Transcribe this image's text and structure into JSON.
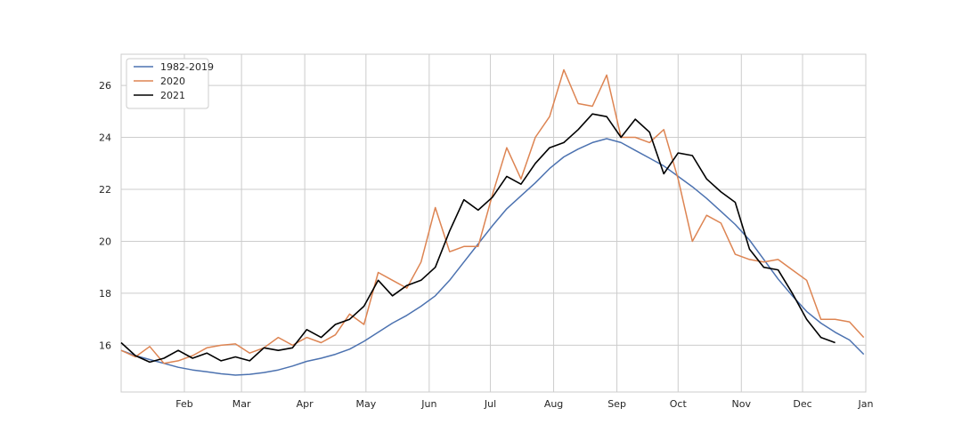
{
  "chart_data": {
    "type": "line",
    "x_axis": {
      "scale": "time",
      "domain": [
        "2021-01-01",
        "2022-01-01"
      ],
      "tick_dates": [
        "2021-02-01",
        "2021-03-01",
        "2021-04-01",
        "2021-05-01",
        "2021-06-01",
        "2021-07-01",
        "2021-08-01",
        "2021-09-01",
        "2021-10-01",
        "2021-11-01",
        "2021-12-01",
        "2022-01-01"
      ],
      "tick_labels": [
        "Feb",
        "Mar",
        "Apr",
        "May",
        "Jun",
        "Jul",
        "Aug",
        "Sep",
        "Oct",
        "Nov",
        "Dec",
        "Jan"
      ]
    },
    "y_axis": {
      "ylim": [
        14.2,
        27.2
      ],
      "ticks": [
        16,
        18,
        20,
        22,
        24,
        26
      ],
      "tick_labels": [
        "16",
        "18",
        "20",
        "22",
        "24",
        "26"
      ]
    },
    "grid": true,
    "legend_position": "top-left",
    "series": [
      {
        "name": "1982-2019",
        "color": "#4c72b0",
        "points": [
          [
            "2021-01-01",
            15.8
          ],
          [
            "2021-01-08",
            15.6
          ],
          [
            "2021-01-15",
            15.45
          ],
          [
            "2021-01-22",
            15.3
          ],
          [
            "2021-01-29",
            15.15
          ],
          [
            "2021-02-05",
            15.05
          ],
          [
            "2021-02-12",
            14.98
          ],
          [
            "2021-02-19",
            14.9
          ],
          [
            "2021-02-26",
            14.85
          ],
          [
            "2021-03-05",
            14.88
          ],
          [
            "2021-03-12",
            14.95
          ],
          [
            "2021-03-19",
            15.05
          ],
          [
            "2021-03-26",
            15.2
          ],
          [
            "2021-04-02",
            15.38
          ],
          [
            "2021-04-09",
            15.5
          ],
          [
            "2021-04-16",
            15.65
          ],
          [
            "2021-04-23",
            15.85
          ],
          [
            "2021-04-30",
            16.15
          ],
          [
            "2021-05-07",
            16.5
          ],
          [
            "2021-05-14",
            16.85
          ],
          [
            "2021-05-21",
            17.15
          ],
          [
            "2021-05-28",
            17.5
          ],
          [
            "2021-06-04",
            17.9
          ],
          [
            "2021-06-11",
            18.5
          ],
          [
            "2021-06-18",
            19.2
          ],
          [
            "2021-06-25",
            19.9
          ],
          [
            "2021-07-02",
            20.6
          ],
          [
            "2021-07-09",
            21.25
          ],
          [
            "2021-07-16",
            21.75
          ],
          [
            "2021-07-23",
            22.25
          ],
          [
            "2021-07-30",
            22.8
          ],
          [
            "2021-08-06",
            23.25
          ],
          [
            "2021-08-13",
            23.55
          ],
          [
            "2021-08-20",
            23.8
          ],
          [
            "2021-08-27",
            23.95
          ],
          [
            "2021-09-03",
            23.8
          ],
          [
            "2021-09-10",
            23.5
          ],
          [
            "2021-09-17",
            23.2
          ],
          [
            "2021-09-24",
            22.9
          ],
          [
            "2021-10-01",
            22.5
          ],
          [
            "2021-10-08",
            22.1
          ],
          [
            "2021-10-15",
            21.65
          ],
          [
            "2021-10-22",
            21.15
          ],
          [
            "2021-10-29",
            20.65
          ],
          [
            "2021-11-05",
            20.05
          ],
          [
            "2021-11-12",
            19.3
          ],
          [
            "2021-11-19",
            18.55
          ],
          [
            "2021-11-26",
            17.9
          ],
          [
            "2021-12-03",
            17.3
          ],
          [
            "2021-12-10",
            16.85
          ],
          [
            "2021-12-17",
            16.5
          ],
          [
            "2021-12-24",
            16.2
          ],
          [
            "2021-12-31",
            15.65
          ]
        ]
      },
      {
        "name": "2020",
        "color": "#dd8452",
        "points": [
          [
            "2021-01-01",
            15.8
          ],
          [
            "2021-01-08",
            15.55
          ],
          [
            "2021-01-15",
            15.95
          ],
          [
            "2021-01-22",
            15.3
          ],
          [
            "2021-01-29",
            15.4
          ],
          [
            "2021-02-05",
            15.6
          ],
          [
            "2021-02-12",
            15.9
          ],
          [
            "2021-02-19",
            16.0
          ],
          [
            "2021-02-26",
            16.05
          ],
          [
            "2021-03-05",
            15.7
          ],
          [
            "2021-03-12",
            15.9
          ],
          [
            "2021-03-19",
            16.3
          ],
          [
            "2021-03-26",
            16.0
          ],
          [
            "2021-04-02",
            16.3
          ],
          [
            "2021-04-09",
            16.1
          ],
          [
            "2021-04-16",
            16.4
          ],
          [
            "2021-04-23",
            17.2
          ],
          [
            "2021-04-30",
            16.8
          ],
          [
            "2021-05-07",
            18.8
          ],
          [
            "2021-05-14",
            18.5
          ],
          [
            "2021-05-21",
            18.2
          ],
          [
            "2021-05-28",
            19.2
          ],
          [
            "2021-06-04",
            21.3
          ],
          [
            "2021-06-11",
            19.6
          ],
          [
            "2021-06-18",
            19.8
          ],
          [
            "2021-06-25",
            19.8
          ],
          [
            "2021-07-02",
            21.8
          ],
          [
            "2021-07-09",
            23.6
          ],
          [
            "2021-07-16",
            22.4
          ],
          [
            "2021-07-23",
            24.0
          ],
          [
            "2021-07-30",
            24.8
          ],
          [
            "2021-08-06",
            26.6
          ],
          [
            "2021-08-13",
            25.3
          ],
          [
            "2021-08-20",
            25.2
          ],
          [
            "2021-08-27",
            26.4
          ],
          [
            "2021-09-03",
            24.0
          ],
          [
            "2021-09-10",
            24.0
          ],
          [
            "2021-09-17",
            23.8
          ],
          [
            "2021-09-24",
            24.3
          ],
          [
            "2021-10-01",
            22.4
          ],
          [
            "2021-10-08",
            20.0
          ],
          [
            "2021-10-15",
            21.0
          ],
          [
            "2021-10-22",
            20.7
          ],
          [
            "2021-10-29",
            19.5
          ],
          [
            "2021-11-05",
            19.3
          ],
          [
            "2021-11-12",
            19.2
          ],
          [
            "2021-11-19",
            19.3
          ],
          [
            "2021-11-26",
            18.9
          ],
          [
            "2021-12-03",
            18.5
          ],
          [
            "2021-12-10",
            17.0
          ],
          [
            "2021-12-17",
            17.0
          ],
          [
            "2021-12-24",
            16.9
          ],
          [
            "2021-12-31",
            16.3
          ]
        ]
      },
      {
        "name": "2021",
        "color": "#000000",
        "points": [
          [
            "2021-01-01",
            16.1
          ],
          [
            "2021-01-08",
            15.6
          ],
          [
            "2021-01-15",
            15.35
          ],
          [
            "2021-01-22",
            15.5
          ],
          [
            "2021-01-29",
            15.8
          ],
          [
            "2021-02-05",
            15.5
          ],
          [
            "2021-02-12",
            15.7
          ],
          [
            "2021-02-19",
            15.4
          ],
          [
            "2021-02-26",
            15.55
          ],
          [
            "2021-03-05",
            15.4
          ],
          [
            "2021-03-12",
            15.9
          ],
          [
            "2021-03-19",
            15.8
          ],
          [
            "2021-03-26",
            15.9
          ],
          [
            "2021-04-02",
            16.6
          ],
          [
            "2021-04-09",
            16.3
          ],
          [
            "2021-04-16",
            16.8
          ],
          [
            "2021-04-23",
            17.0
          ],
          [
            "2021-04-30",
            17.5
          ],
          [
            "2021-05-07",
            18.5
          ],
          [
            "2021-05-14",
            17.9
          ],
          [
            "2021-05-21",
            18.3
          ],
          [
            "2021-05-28",
            18.5
          ],
          [
            "2021-06-04",
            19.0
          ],
          [
            "2021-06-11",
            20.4
          ],
          [
            "2021-06-18",
            21.6
          ],
          [
            "2021-06-25",
            21.2
          ],
          [
            "2021-07-02",
            21.7
          ],
          [
            "2021-07-09",
            22.5
          ],
          [
            "2021-07-16",
            22.2
          ],
          [
            "2021-07-23",
            23.0
          ],
          [
            "2021-07-30",
            23.6
          ],
          [
            "2021-08-06",
            23.8
          ],
          [
            "2021-08-13",
            24.3
          ],
          [
            "2021-08-20",
            24.9
          ],
          [
            "2021-08-27",
            24.8
          ],
          [
            "2021-09-03",
            24.0
          ],
          [
            "2021-09-10",
            24.7
          ],
          [
            "2021-09-17",
            24.2
          ],
          [
            "2021-09-24",
            22.6
          ],
          [
            "2021-10-01",
            23.4
          ],
          [
            "2021-10-08",
            23.3
          ],
          [
            "2021-10-15",
            22.4
          ],
          [
            "2021-10-22",
            21.9
          ],
          [
            "2021-10-29",
            21.5
          ],
          [
            "2021-11-05",
            19.7
          ],
          [
            "2021-11-12",
            19.0
          ],
          [
            "2021-11-19",
            18.9
          ],
          [
            "2021-11-26",
            18.0
          ],
          [
            "2021-12-03",
            17.0
          ],
          [
            "2021-12-10",
            16.3
          ],
          [
            "2021-12-17",
            16.1
          ]
        ]
      }
    ]
  }
}
